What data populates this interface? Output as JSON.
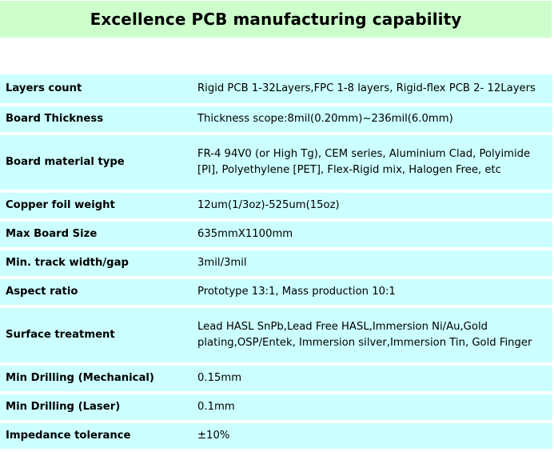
{
  "title": "Excellence PCB manufacturing capability",
  "rows": [
    {
      "label": "Layers count",
      "value": "Rigid PCB 1-32Layers,FPC 1-8 layers, Rigid-flex PCB 2- 12Layers"
    },
    {
      "label": "Board Thickness",
      "value": "Thickness scope:8mil(0.20mm)~236mil(6.0mm)"
    },
    {
      "label": "Board material type",
      "value": "FR-4 94V0 (or High Tg), CEM series, Aluminium Clad, Polyimide [PI],  Polyethylene [PET], Flex-Rigid mix, Halogen Free, etc"
    },
    {
      "label": "Copper foil weight",
      "value": "12um(1/3oz)-525um(15oz)"
    },
    {
      "label": "Max Board Size",
      "value": "635mmX1100mm"
    },
    {
      "label": "Min. track width/gap",
      "value": "3mil/3mil"
    },
    {
      "label": "Aspect ratio",
      "value": "Prototype 13:1, Mass production 10:1"
    },
    {
      "label": "Surface treatment",
      "value": "Lead HASL SnPb,Lead Free HASL,Immersion Ni/Au,Gold plating,OSP/Entek, Immersion silver,Immersion Tin, Gold Finger"
    },
    {
      "label": "Min Drilling (Mechanical)",
      "value": "0.15mm"
    },
    {
      "label": "Min Drilling (Laser)",
      "value": "0.1mm"
    },
    {
      "label": "Impedance tolerance",
      "value": "±10%"
    }
  ]
}
